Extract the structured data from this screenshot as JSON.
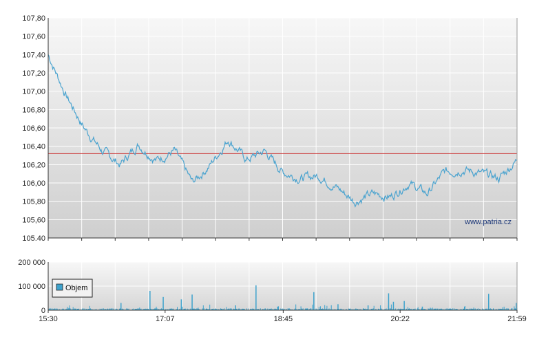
{
  "watermark": "www.patria.cz",
  "chart_data": [
    {
      "type": "line",
      "title": "",
      "xlabel": "",
      "ylabel": "",
      "ylim": [
        105.4,
        107.8
      ],
      "yticks": [
        "107,80",
        "107,60",
        "107,40",
        "107,20",
        "107,00",
        "106,80",
        "106,60",
        "106,40",
        "106,20",
        "106,00",
        "105,80",
        "105,60",
        "105.40"
      ],
      "reference_line": 106.32,
      "grid": true,
      "colors": {
        "line": "#4aa3cf",
        "reference": "#cc3333",
        "grid": "#ffffff",
        "bg_top": "#f7f7f7",
        "bg_bottom": "#cfcfcf"
      },
      "x": [
        "15:30",
        "15:45",
        "16:00",
        "16:15",
        "16:30",
        "16:45",
        "17:00",
        "17:15",
        "17:30",
        "17:45",
        "18:00",
        "18:15",
        "18:30",
        "18:45",
        "19:00",
        "19:15",
        "19:30",
        "19:45",
        "20:00",
        "20:15",
        "20:30",
        "20:45",
        "21:00",
        "21:15",
        "21:30",
        "21:45",
        "21:59"
      ],
      "series": [
        {
          "values": [
            107.4,
            106.95,
            106.6,
            106.35,
            106.2,
            106.42,
            106.25,
            106.35,
            106.0,
            106.2,
            106.48,
            106.25,
            106.35,
            106.12,
            106.05,
            106.08,
            105.95,
            105.8,
            105.88,
            105.85,
            106.0,
            105.88,
            106.12,
            106.15,
            106.1,
            106.05,
            106.25
          ]
        }
      ]
    },
    {
      "type": "bar",
      "title": "",
      "xlabel": "",
      "ylabel": "",
      "ylim": [
        0,
        200000
      ],
      "yticks": [
        "200 000",
        "100 000",
        "0"
      ],
      "xticks": [
        "15:30",
        "17:07",
        "18:45",
        "20:22",
        "21:59"
      ],
      "legend": {
        "label": "Objem",
        "position": "left"
      },
      "colors": {
        "bar": "#3ea2cc"
      },
      "spikes": [
        {
          "t": "16:30",
          "v": 30000
        },
        {
          "t": "16:54",
          "v": 80000
        },
        {
          "t": "17:05",
          "v": 55000
        },
        {
          "t": "17:20",
          "v": 45000
        },
        {
          "t": "17:29",
          "v": 65000
        },
        {
          "t": "18:05",
          "v": 20000
        },
        {
          "t": "18:22",
          "v": 103000
        },
        {
          "t": "18:40",
          "v": 15000
        },
        {
          "t": "19:10",
          "v": 75000
        },
        {
          "t": "19:30",
          "v": 25000
        },
        {
          "t": "19:55",
          "v": 20000
        },
        {
          "t": "20:12",
          "v": 70000
        },
        {
          "t": "20:16",
          "v": 35000
        },
        {
          "t": "20:25",
          "v": 38000
        },
        {
          "t": "20:40",
          "v": 15000
        },
        {
          "t": "21:15",
          "v": 15000
        },
        {
          "t": "21:35",
          "v": 68000
        },
        {
          "t": "21:58",
          "v": 30000
        }
      ],
      "baseline_volume": 6000
    }
  ]
}
